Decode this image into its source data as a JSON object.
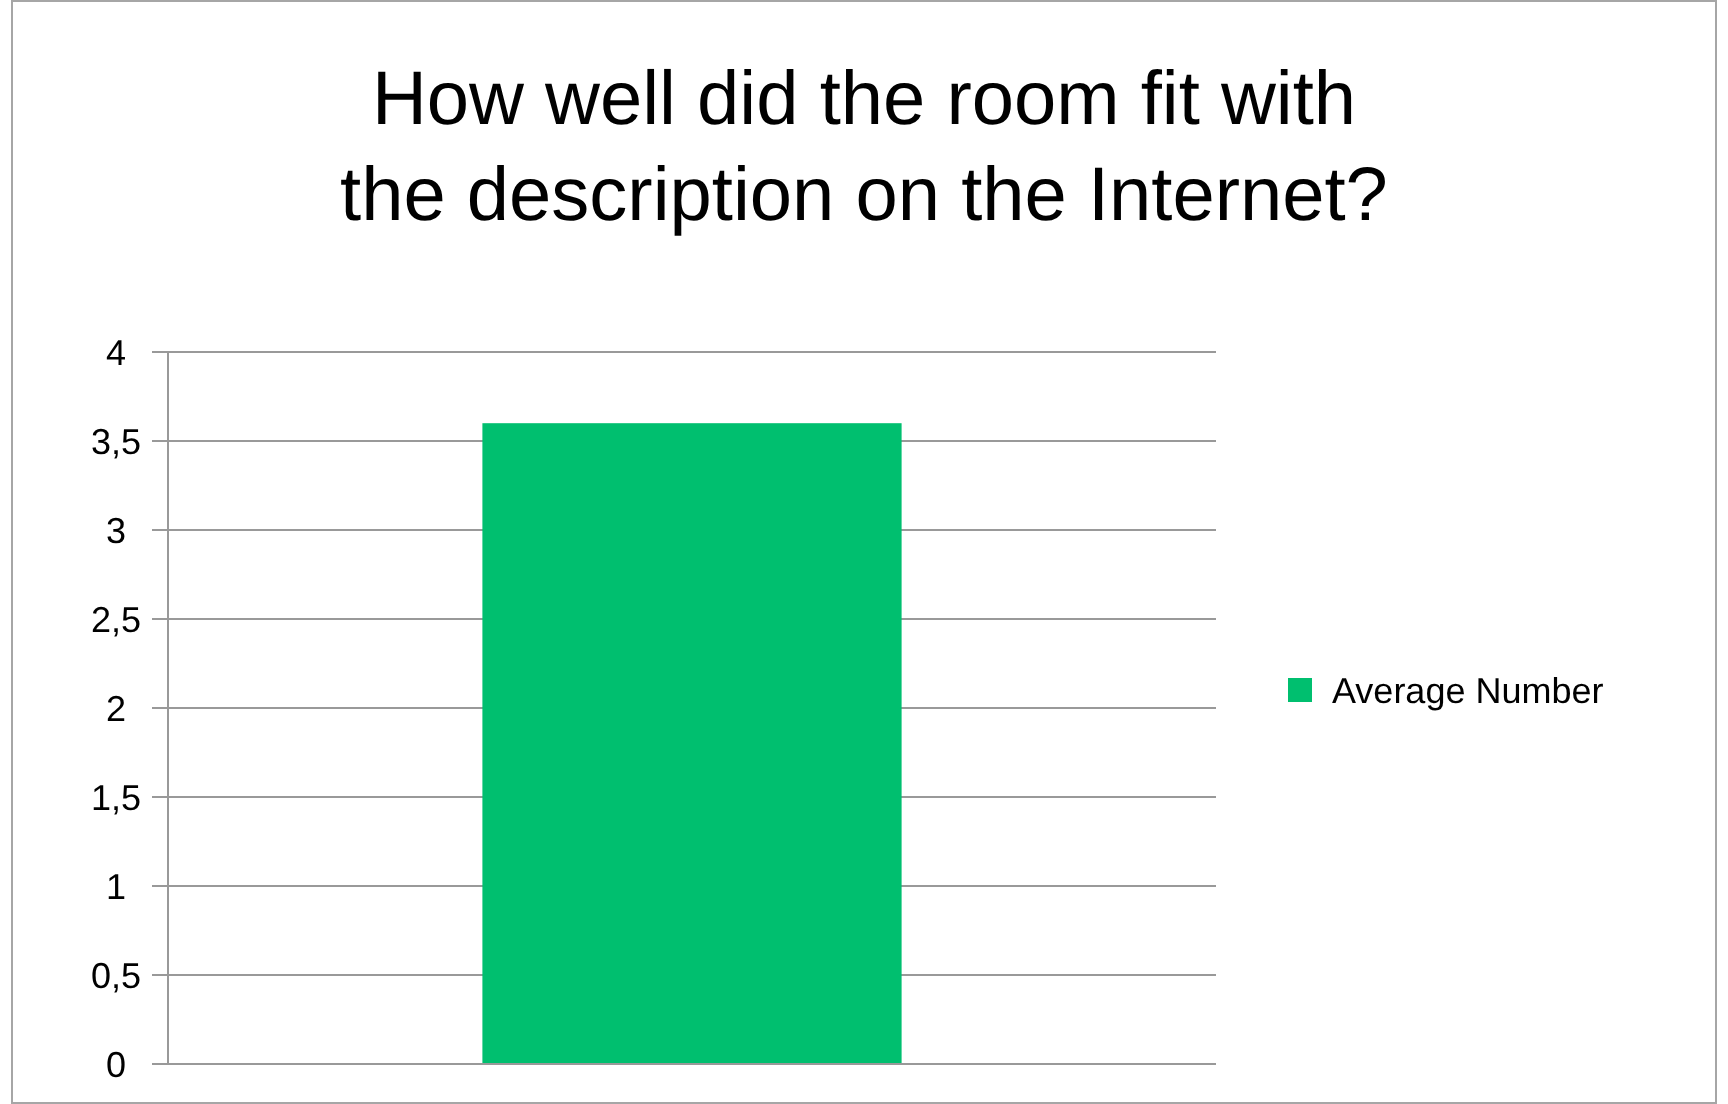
{
  "chart_data": {
    "type": "bar",
    "title": "How well did the room fit with the description on the Internet?",
    "categories": [
      null
    ],
    "series": [
      {
        "name": "Average Number",
        "color": "#00bf6f",
        "values": [
          3.6
        ]
      }
    ],
    "ylim": [
      0,
      4
    ],
    "yticks": [
      0,
      {
        "value": 0.5,
        "label": "0,5"
      },
      1,
      {
        "value": 1.5,
        "label": "1,5"
      },
      2,
      {
        "value": 2.5,
        "label": "2,5"
      },
      3,
      {
        "value": 3.5,
        "label": "3,5"
      },
      4
    ],
    "grid": "y",
    "legend": "right"
  }
}
